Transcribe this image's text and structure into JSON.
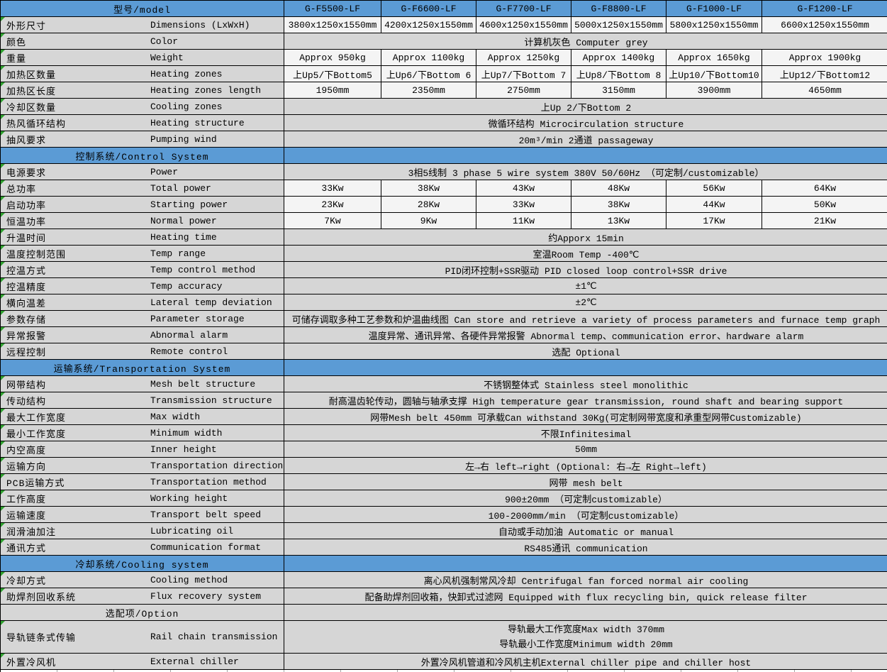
{
  "colors": {
    "header_blue": "#5b9bd5",
    "row_gray": "#d6d6d6",
    "cell_white": "#f4f4f4",
    "border": "#000000",
    "flag_green": "#2fa12f"
  },
  "header": {
    "label": "型号/model",
    "models": [
      "G-F5500-LF",
      "G-F6600-LF",
      "G-F7700-LF",
      "G-F8800-LF",
      "G-F1000-LF",
      "G-F1200-LF"
    ]
  },
  "rows": [
    {
      "type": "data",
      "zh": "外形尺寸",
      "en": "Dimensions (LxWxH)",
      "values": [
        "3800x1250x1550mm",
        "4200x1250x1550mm",
        "4600x1250x1550mm",
        "5000x1250x1550mm",
        "5800x1250x1550mm",
        "6600x1250x1550mm"
      ]
    },
    {
      "type": "span",
      "zh": "颜色",
      "en": "Color",
      "value": "计算机灰色 Computer grey"
    },
    {
      "type": "data",
      "zh": "重量",
      "en": "Weight",
      "values": [
        "Approx 950kg",
        "Approx 1100kg",
        "Approx 1250kg",
        "Approx 1400kg",
        "Approx 1650kg",
        "Approx 1900kg"
      ]
    },
    {
      "type": "data",
      "zh": "加热区数量",
      "en": "Heating zones",
      "values": [
        "上Up5/下Bottom5",
        "上Up6/下Bottom 6",
        "上Up7/下Bottom 7",
        "上Up8/下Bottom 8",
        "上Up10/下Bottom10",
        "上Up12/下Bottom12"
      ]
    },
    {
      "type": "data",
      "zh": "加热区长度",
      "en": "Heating zones length",
      "values": [
        "1950mm",
        "2350mm",
        "2750mm",
        "3150mm",
        "3900mm",
        "4650mm"
      ]
    },
    {
      "type": "span",
      "zh": "冷却区数量",
      "en": "Cooling zones",
      "value": "上Up 2/下Bottom 2"
    },
    {
      "type": "span",
      "zh": "热风循环结构",
      "en": "Heating structure",
      "value": "微循环结构 Microcirculation structure"
    },
    {
      "type": "span",
      "zh": "抽风要求",
      "en": "Pumping wind",
      "value": "20m³/min 2通道 passageway"
    },
    {
      "type": "section",
      "label": "控制系统/Control System"
    },
    {
      "type": "span",
      "zh": "电源要求",
      "en": "Power",
      "value": "3相5线制 3 phase 5 wire system  380V 50/60Hz （可定制/customizable）"
    },
    {
      "type": "data",
      "zh": "总功率",
      "en": "Total power",
      "values": [
        "33Kw",
        "38Kw",
        "43Kw",
        "48Kw",
        "56Kw",
        "64Kw"
      ]
    },
    {
      "type": "data",
      "zh": "启动功率",
      "en": "Starting power",
      "values": [
        "23Kw",
        "28Kw",
        "33Kw",
        "38Kw",
        "44Kw",
        "50Kw"
      ]
    },
    {
      "type": "data",
      "zh": "恒温功率",
      "en": "Normal power",
      "values": [
        "7Kw",
        "9Kw",
        "11Kw",
        "13Kw",
        "17Kw",
        "21Kw"
      ]
    },
    {
      "type": "span",
      "zh": "升温时间",
      "en": "Heating time",
      "value": "约Apporx 15min"
    },
    {
      "type": "span",
      "zh": "温度控制范围",
      "en": "Temp range",
      "value": "室温Room Temp -400℃"
    },
    {
      "type": "span",
      "zh": "控温方式",
      "en": "Temp control method",
      "value": "PID闭环控制+SSR驱动 PID closed loop control+SSR drive"
    },
    {
      "type": "span",
      "zh": "控温精度",
      "en": "Temp accuracy",
      "value": "±1℃"
    },
    {
      "type": "span",
      "zh": "横向温差",
      "en": "Lateral temp deviation",
      "value": "±2℃"
    },
    {
      "type": "span",
      "zh": "参数存储",
      "en": "Parameter storage",
      "value": "可储存调取多种工艺参数和炉温曲线图 Can store and retrieve a variety of process parameters and furnace temp graph"
    },
    {
      "type": "span",
      "zh": "异常报警",
      "en": "Abnormal alarm",
      "value": "温度异常、通讯异常、各硬件异常报警 Abnormal temp、communication error、hardware alarm"
    },
    {
      "type": "span",
      "zh": "远程控制",
      "en": "Remote control",
      "value": "选配 Optional"
    },
    {
      "type": "section",
      "label": "运输系统/Transportation System"
    },
    {
      "type": "span",
      "zh": "网带结构",
      "en": "Mesh belt structure",
      "value": "不锈钢整体式 Stainless steel monolithic"
    },
    {
      "type": "span",
      "zh": "传动结构",
      "en": "Transmission structure",
      "value": "耐高温齿轮传动，圆轴与轴承支撑 High temperature gear transmission, round shaft and bearing support"
    },
    {
      "type": "span",
      "zh": "最大工作宽度",
      "en": "Max width",
      "value": "网带Mesh belt 450mm 可承载Can withstand 30Kg(可定制网带宽度和承重型网带Customizable)"
    },
    {
      "type": "span",
      "zh": "最小工作宽度",
      "en": "Minimum width",
      "value": "不限Infinitesimal"
    },
    {
      "type": "span",
      "zh": "内空高度",
      "en": "Inner height",
      "value": "50mm"
    },
    {
      "type": "span",
      "zh": "运输方向",
      "en": "Transportation direction",
      "value": "左→右 left→right (Optional: 右→左 Right→left)"
    },
    {
      "type": "span",
      "zh": "PCB运输方式",
      "en": "Transportation method",
      "value": "网带 mesh belt"
    },
    {
      "type": "span",
      "zh": "工作高度",
      "en": "Working height",
      "value": "900±20mm （可定制customizable）"
    },
    {
      "type": "span",
      "zh": "运输速度",
      "en": "Transport belt speed",
      "value": "100-2000mm/min （可定制customizable）"
    },
    {
      "type": "span",
      "zh": "润滑油加注",
      "en": "Lubricating oil",
      "value": "自动或手动加油 Automatic or manual"
    },
    {
      "type": "span",
      "zh": "通讯方式",
      "en": "Communication format",
      "value": "RS485通讯 communication"
    },
    {
      "type": "section",
      "label": "冷却系统/Cooling system"
    },
    {
      "type": "span",
      "zh": "冷却方式",
      "en": "Cooling method",
      "value": "离心风机强制常风冷却 Centrifugal fan forced normal air cooling"
    },
    {
      "type": "span",
      "zh": "助焊剂回收系统",
      "en": "Flux recovery system",
      "value": "配备助焊剂回收箱，快卸式过滤网 Equipped with flux recycling bin, quick release filter"
    },
    {
      "type": "option",
      "label": "选配项/Option"
    },
    {
      "type": "span2",
      "zh": "导轨链条式传输",
      "en": "Rail chain transmission",
      "lines": [
        "导轨最大工作宽度Max width 370mm",
        "导轨最小工作宽度Minimum width 20mm"
      ]
    },
    {
      "type": "span",
      "zh": "外置冷风机",
      "en": "External chiller",
      "value": "外置冷风机管道和冷风机主机External chiller pipe and chiller host"
    }
  ]
}
